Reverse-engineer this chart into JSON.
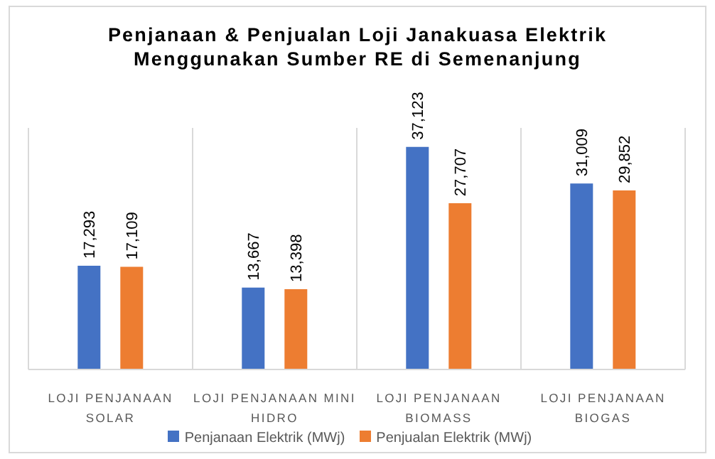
{
  "chart_data": {
    "type": "bar",
    "title": "Penjanaan & Penjualan Loji Janakuasa Elektrik Menggunakan Sumber RE di Semenanjung",
    "categories": [
      "LOJI PENJANAAN SOLAR",
      "LOJI PENJANAAN MINI HIDRO",
      "LOJI PENJANAAN BIOMASS",
      "LOJI PENJANAAN BIOGAS"
    ],
    "series": [
      {
        "name": "Penjanaan Elektrik (MWj)",
        "color": "#4472c4",
        "values": [
          17293,
          13667,
          37123,
          31009
        ],
        "value_labels": [
          "17,293",
          "13,667",
          "37,123",
          "31,009"
        ]
      },
      {
        "name": "Penjualan Elektrik (MWj)",
        "color": "#ed7d31",
        "values": [
          17109,
          13398,
          27707,
          29852
        ],
        "value_labels": [
          "17,109",
          "13,398",
          "27,707",
          "29,852"
        ]
      }
    ],
    "grid": "x",
    "legend": "bottom"
  }
}
